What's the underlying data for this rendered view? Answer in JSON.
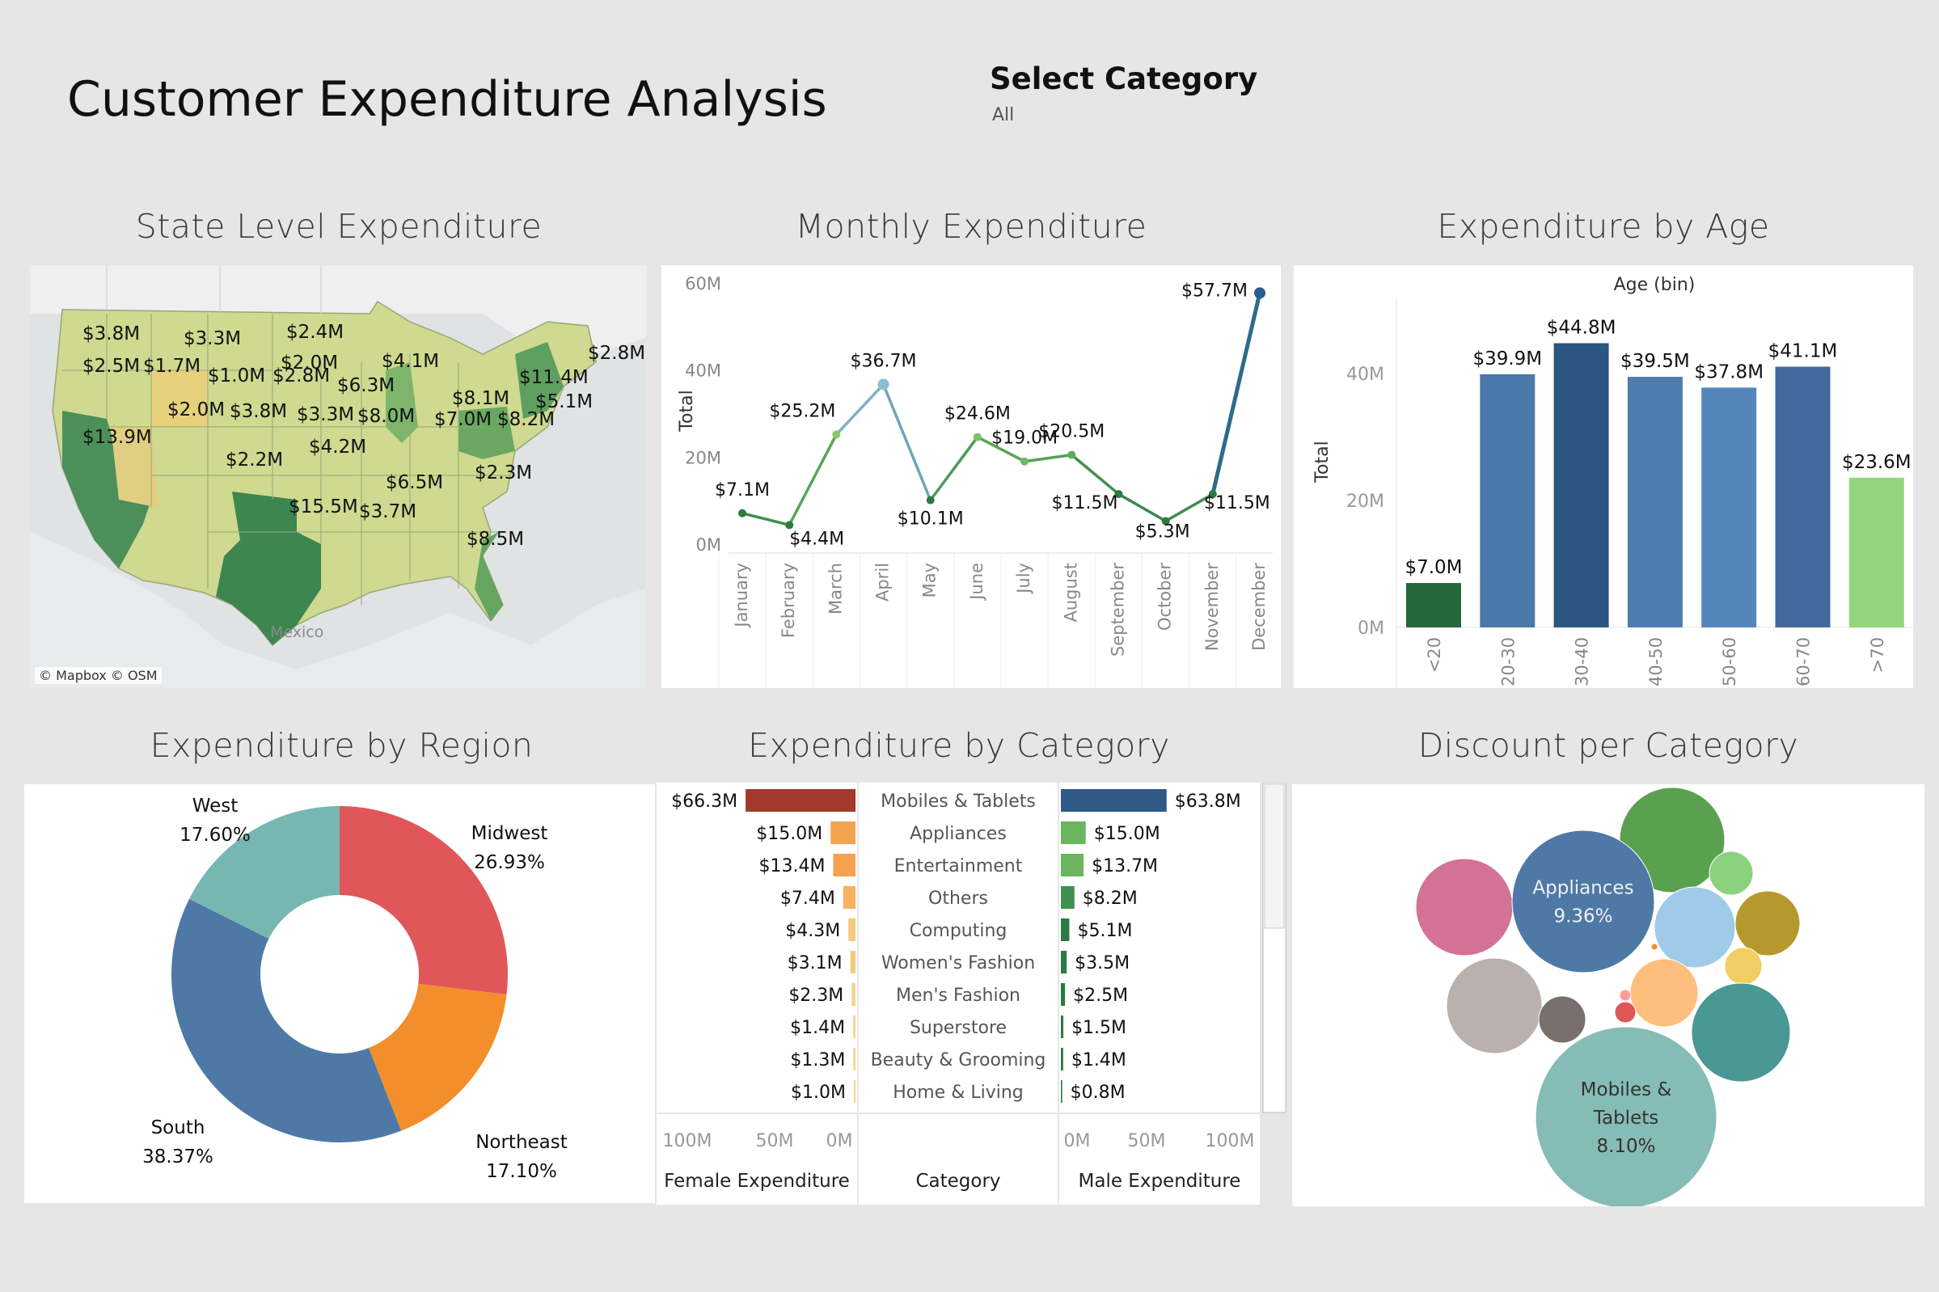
{
  "header": {
    "title": "Customer Expenditure Analysis",
    "filter_label": "Select Category",
    "filter_value": "All"
  },
  "panels": {
    "state": "State Level Expenditure",
    "monthly": "Monthly Expenditure",
    "age": "Expenditure by Age",
    "region": "Expenditure by Region",
    "category": "Expenditure by Category",
    "discount": "Discount per Category"
  },
  "map": {
    "attribution": "© Mapbox © OSM",
    "country_label": "Mexico",
    "state_labels": [
      "$3.8M",
      "$3.3M",
      "$2.4M",
      "$2.8M",
      "$2.5M",
      "$1.7M",
      "$1.0M",
      "$2.0M",
      "$4.1M",
      "$11.4M",
      "$2.8M",
      "$6.3M",
      "$8.1M",
      "$5.1M",
      "$13.9M",
      "$2.0M",
      "$3.8M",
      "$3.3M",
      "$8.0M",
      "$7.0M",
      "$8.2M",
      "$2.2M",
      "$4.2M",
      "$6.5M",
      "$2.3M",
      "$15.5M",
      "$3.7M",
      "$8.5M"
    ]
  },
  "chart_data": [
    {
      "type": "line",
      "title": "Monthly Expenditure",
      "ylabel": "Total",
      "ylim": [
        0,
        60
      ],
      "y_unit": "M",
      "yticks": [
        "0M",
        "20M",
        "40M",
        "60M"
      ],
      "categories": [
        "January",
        "February",
        "March",
        "April",
        "May",
        "June",
        "July",
        "August",
        "September",
        "October",
        "November",
        "December"
      ],
      "values": [
        7.1,
        4.4,
        25.2,
        36.7,
        10.1,
        24.6,
        19.0,
        20.5,
        11.5,
        5.3,
        11.5,
        57.7
      ],
      "labels": [
        "$7.1M",
        "$4.4M",
        "$25.2M",
        "$36.7M",
        "$10.1M",
        "$24.6M",
        "$19.0M",
        "$20.5M",
        "$11.5M",
        "$5.3M",
        "$11.5M",
        "$57.7M"
      ]
    },
    {
      "type": "bar",
      "title": "Expenditure by Age",
      "xlabel": "Age (bin)",
      "ylabel": "Total",
      "ylim": [
        0,
        52
      ],
      "yticks": [
        "0M",
        "20M",
        "40M"
      ],
      "categories": [
        "<20",
        "20-30",
        "30-40",
        "40-50",
        "50-60",
        "60-70",
        ">70"
      ],
      "values": [
        7.0,
        39.9,
        44.8,
        39.5,
        37.8,
        41.1,
        23.6
      ],
      "labels": [
        "$7.0M",
        "$39.9M",
        "$44.8M",
        "$39.5M",
        "$37.8M",
        "$41.1M",
        "$23.6M"
      ],
      "colors": [
        "#23673a",
        "#4a78a8",
        "#2b5582",
        "#4e7cac",
        "#5487b9",
        "#41699b",
        "#92d57e"
      ]
    },
    {
      "type": "pie",
      "title": "Expenditure by Region",
      "categories": [
        "Midwest",
        "Northeast",
        "South",
        "West"
      ],
      "values": [
        26.93,
        17.1,
        38.37,
        17.6
      ],
      "labels": [
        "26.93%",
        "17.10%",
        "38.37%",
        "17.60%"
      ],
      "colors": [
        "#e15759",
        "#f28e2b",
        "#4e79a7",
        "#76b7b2"
      ]
    },
    {
      "type": "bar",
      "title": "Expenditure by Category",
      "categories": [
        "Mobiles & Tablets",
        "Appliances",
        "Entertainment",
        "Others",
        "Computing",
        "Women's Fashion",
        "Men's Fashion",
        "Superstore",
        "Beauty & Grooming",
        "Home & Living"
      ],
      "category_header": "Category",
      "series": [
        {
          "name": "Female Expenditure",
          "values": [
            66.3,
            15.0,
            13.4,
            7.4,
            4.3,
            3.1,
            2.3,
            1.4,
            1.3,
            1.0
          ],
          "labels": [
            "$66.3M",
            "$15.0M",
            "$13.4M",
            "$7.4M",
            "$4.3M",
            "$3.1M",
            "$2.3M",
            "$1.4M",
            "$1.3M",
            "$1.0M"
          ],
          "colors": [
            "#a2392a",
            "#f3a24e",
            "#f3a24e",
            "#f6b261",
            "#f7c97a",
            "#f7c97a",
            "#f8d38a",
            "#f8d38a",
            "#f8d38a",
            "#f8d38a"
          ]
        },
        {
          "name": "Male Expenditure",
          "values": [
            63.8,
            15.0,
            13.7,
            8.2,
            5.1,
            3.5,
            2.5,
            1.5,
            1.4,
            0.8
          ],
          "labels": [
            "$63.8M",
            "$15.0M",
            "$13.7M",
            "$8.2M",
            "$5.1M",
            "$3.5M",
            "$2.5M",
            "$1.5M",
            "$1.4M",
            "$0.8M"
          ],
          "colors": [
            "#2f5a88",
            "#6ab55d",
            "#6ab55d",
            "#3f9150",
            "#2a7a43",
            "#2a7a43",
            "#2a7a43",
            "#2a7a43",
            "#2a7a43",
            "#2a7a43"
          ]
        }
      ],
      "axis_ticks_female": [
        "100M",
        "50M",
        "0M"
      ],
      "axis_ticks_male": [
        "0M",
        "50M",
        "100M"
      ],
      "xlim": [
        0,
        100
      ]
    },
    {
      "type": "scatter",
      "title": "Discount per Category",
      "labeled_bubbles": [
        {
          "lines": [
            "Appliances",
            "9.36%"
          ]
        },
        {
          "lines": [
            "Mobiles &",
            "Tablets",
            "8.10%"
          ]
        }
      ]
    }
  ]
}
